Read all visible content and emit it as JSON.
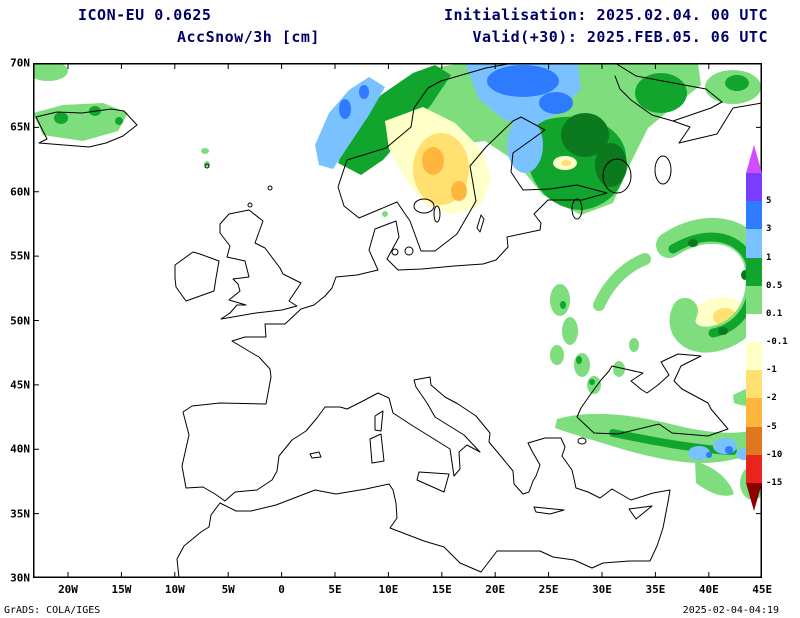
{
  "header": {
    "model": "ICON-EU 0.0625",
    "variable": "AccSnow/3h [cm]",
    "initialisation": "Initialisation: 2025.02.04. 00 UTC",
    "valid": "Valid(+30): 2025.FEB.05. 06 UTC"
  },
  "axes": {
    "x_ticks": [
      "20W",
      "15W",
      "10W",
      "5W",
      "0",
      "5E",
      "10E",
      "15E",
      "20E",
      "25E",
      "30E",
      "35E",
      "40E",
      "45E"
    ],
    "y_ticks": [
      "70N",
      "65N",
      "60N",
      "55N",
      "50N",
      "45N",
      "40N",
      "35N",
      "30N"
    ]
  },
  "colorbar": {
    "segments": [
      {
        "color": "#d24dff",
        "label": ""
      },
      {
        "color": "#7a3cff",
        "label": "5"
      },
      {
        "color": "#2e7bff",
        "label": "3"
      },
      {
        "color": "#79c1ff",
        "label": "1"
      },
      {
        "color": "#12a52e",
        "label": "0.5"
      },
      {
        "color": "#7ede7e",
        "label": "0.1"
      },
      {
        "color": "#ffffff",
        "label": "-0.1"
      },
      {
        "color": "#ffffc8",
        "label": "-1"
      },
      {
        "color": "#ffe070",
        "label": "-2"
      },
      {
        "color": "#ffb63c",
        "label": "-5"
      },
      {
        "color": "#e07820",
        "label": "-10"
      },
      {
        "color": "#e8241c",
        "label": "-15"
      },
      {
        "color": "#8c0000",
        "label": ""
      }
    ]
  },
  "footer": {
    "left": "GrADS: COLA/IGES",
    "right": "2025-02-04-04:19"
  },
  "map": {
    "frame_color": "#000000",
    "coast_color": "#000000"
  }
}
